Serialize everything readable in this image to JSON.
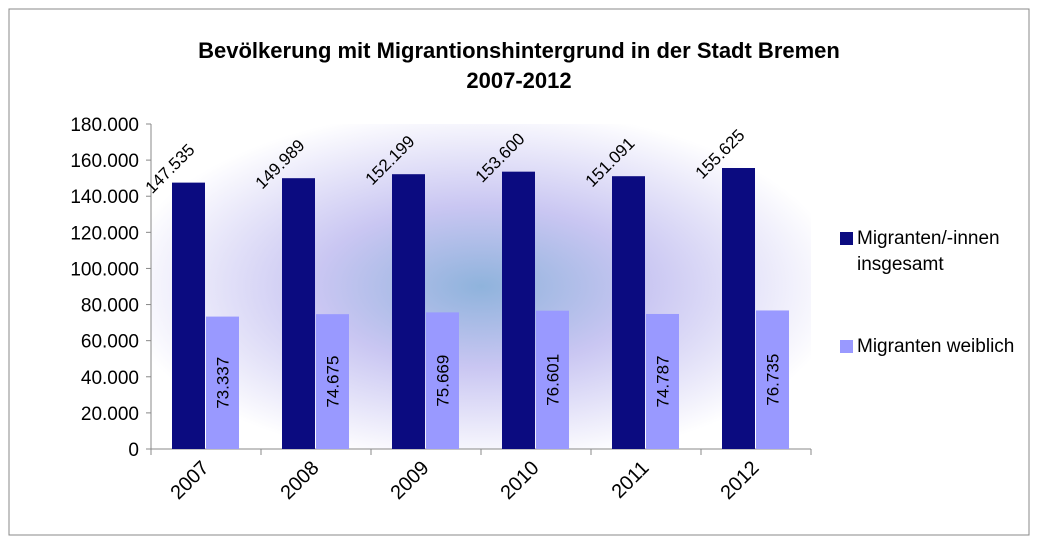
{
  "chart_data": {
    "type": "bar",
    "title": "Bevölkerung mit Migrantionshintergrund in der Stadt Bremen",
    "subtitle": "2007-2012",
    "categories": [
      "2007",
      "2008",
      "2009",
      "2010",
      "2011",
      "2012"
    ],
    "series": [
      {
        "name": "Migranten/-innen insgesamt",
        "color": "#0b0b80",
        "values": [
          147535,
          149989,
          152199,
          153600,
          151091,
          155625
        ],
        "value_labels": [
          "147.535",
          "149.989",
          "152.199",
          "153.600",
          "151.091",
          "155.625"
        ]
      },
      {
        "name": "Migranten weiblich",
        "color": "#9999ff",
        "values": [
          73337,
          74675,
          75669,
          76601,
          74787,
          76735
        ],
        "value_labels": [
          "73.337",
          "74.675",
          "75.669",
          "76.601",
          "74.787",
          "76.735"
        ]
      }
    ],
    "ylim": [
      0,
      180000
    ],
    "yticks": [
      0,
      {
        "value": 20000,
        "label": "20.000"
      },
      {
        "value": 40000,
        "label": "40.000"
      },
      {
        "value": 60000,
        "label": "60.000"
      },
      {
        "value": 80000,
        "label": "80.000"
      },
      {
        "value": 100000,
        "label": "100.000"
      },
      {
        "value": 120000,
        "label": "120.000"
      },
      {
        "value": 140000,
        "label": "140.000"
      },
      {
        "value": 160000,
        "label": "160.000"
      },
      {
        "value": 180000,
        "label": "180.000"
      }
    ],
    "legend": "right"
  }
}
